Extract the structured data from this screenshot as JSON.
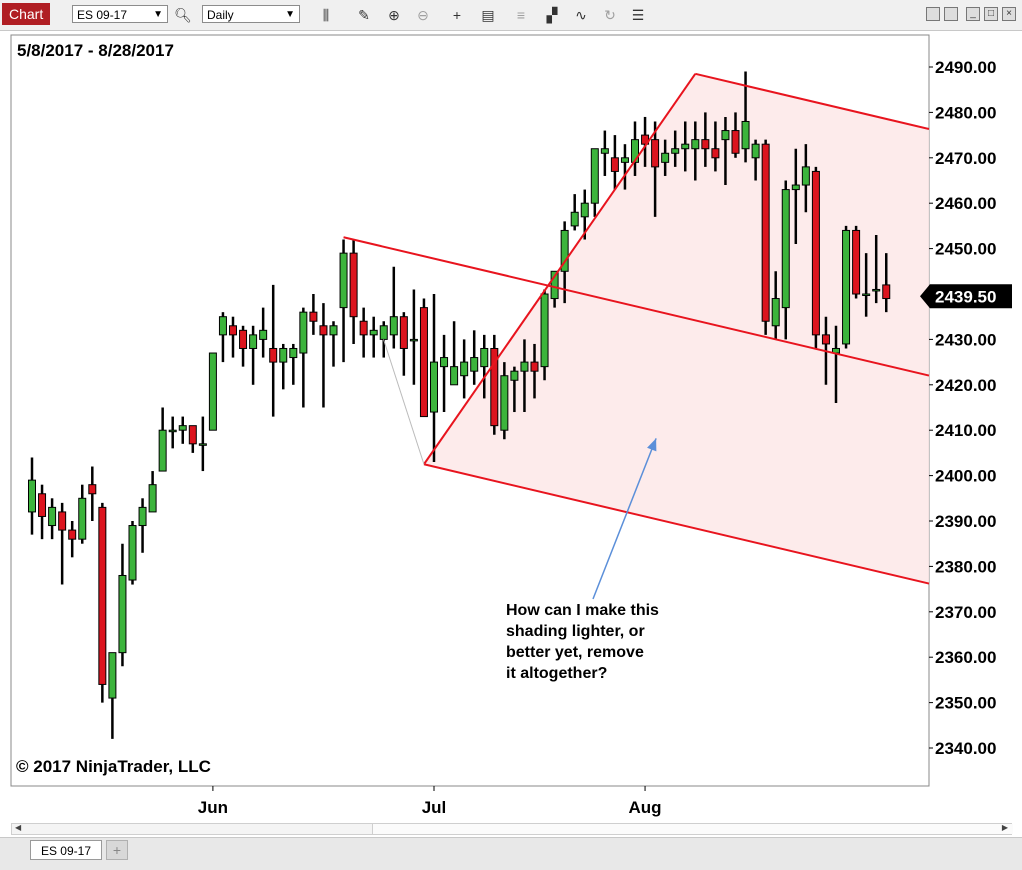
{
  "toolbar": {
    "chart_label": "Chart",
    "instrument": "ES 09-17",
    "interval": "Daily",
    "icons": [
      "search-icon",
      "bars-type-icon",
      "pencil-icon",
      "zoom-in-icon",
      "zoom-out-icon",
      "crosshair-icon",
      "data-box-icon",
      "indicators-icon",
      "strategies-icon",
      "drawing-tools-icon",
      "reload-icon",
      "properties-icon"
    ]
  },
  "tabs": {
    "instrument_tab": "ES 09-17",
    "add_tab": "+"
  },
  "chart_data": {
    "type": "candlestick",
    "date_range": "5/8/2017 - 8/28/2017",
    "copyright": "© 2017 NinjaTrader, LLC",
    "ylim": [
      2333,
      2496
    ],
    "yticks": [
      2490,
      2480,
      2470,
      2460,
      2450,
      2440,
      2430,
      2420,
      2410,
      2400,
      2390,
      2380,
      2370,
      2360,
      2350,
      2340
    ],
    "ytick_labels": [
      "2490.00",
      "2480.00",
      "2470.00",
      "2460.00",
      "2450.00",
      "2440.00",
      "2430.00",
      "2420.00",
      "2410.00",
      "2400.00",
      "2390.00",
      "2380.00",
      "2370.00",
      "2360.00",
      "2350.00",
      "2340.00"
    ],
    "xtick_labels": [
      {
        "label": "Jun",
        "index": 18
      },
      {
        "label": "Jul",
        "index": 40
      },
      {
        "label": "Aug",
        "index": 61
      }
    ],
    "last_price": 2439.5,
    "last_price_label": "2439.50",
    "up_color": "#3cb43c",
    "down_color": "#dc141e",
    "channel_color": "#e8141e",
    "channel_fill": "#fde8e8",
    "candles": [
      {
        "o": 2392,
        "h": 2404,
        "l": 2387,
        "c": 2399
      },
      {
        "o": 2396,
        "h": 2398,
        "l": 2386,
        "c": 2391
      },
      {
        "o": 2389,
        "h": 2395,
        "l": 2386,
        "c": 2393
      },
      {
        "o": 2392,
        "h": 2394,
        "l": 2376,
        "c": 2388
      },
      {
        "o": 2388,
        "h": 2390,
        "l": 2382,
        "c": 2386
      },
      {
        "o": 2386,
        "h": 2398,
        "l": 2385,
        "c": 2395
      },
      {
        "o": 2398,
        "h": 2402,
        "l": 2390,
        "c": 2396
      },
      {
        "o": 2393,
        "h": 2394,
        "l": 2350,
        "c": 2354
      },
      {
        "o": 2351,
        "h": 2361,
        "l": 2342,
        "c": 2361
      },
      {
        "o": 2361,
        "h": 2385,
        "l": 2358,
        "c": 2378
      },
      {
        "o": 2377,
        "h": 2390,
        "l": 2376,
        "c": 2389
      },
      {
        "o": 2389,
        "h": 2395,
        "l": 2383,
        "c": 2393
      },
      {
        "o": 2392,
        "h": 2401,
        "l": 2392,
        "c": 2398
      },
      {
        "o": 2401,
        "h": 2415,
        "l": 2401,
        "c": 2410
      },
      {
        "o": 2410,
        "h": 2413,
        "l": 2406,
        "c": 2410
      },
      {
        "o": 2410,
        "h": 2413,
        "l": 2407,
        "c": 2411
      },
      {
        "o": 2411,
        "h": 2411,
        "l": 2405,
        "c": 2407
      },
      {
        "o": 2407,
        "h": 2413,
        "l": 2401,
        "c": 2407
      },
      {
        "o": 2410,
        "h": 2427,
        "l": 2410,
        "c": 2427
      },
      {
        "o": 2431,
        "h": 2436,
        "l": 2425,
        "c": 2435
      },
      {
        "o": 2433,
        "h": 2435,
        "l": 2426,
        "c": 2431
      },
      {
        "o": 2432,
        "h": 2433,
        "l": 2424,
        "c": 2428
      },
      {
        "o": 2428,
        "h": 2433,
        "l": 2420,
        "c": 2431
      },
      {
        "o": 2430,
        "h": 2437,
        "l": 2426,
        "c": 2432
      },
      {
        "o": 2428,
        "h": 2442,
        "l": 2413,
        "c": 2425
      },
      {
        "o": 2425,
        "h": 2429,
        "l": 2419,
        "c": 2428
      },
      {
        "o": 2426,
        "h": 2429,
        "l": 2420,
        "c": 2428
      },
      {
        "o": 2427,
        "h": 2437,
        "l": 2415,
        "c": 2436
      },
      {
        "o": 2436,
        "h": 2440,
        "l": 2431,
        "c": 2434
      },
      {
        "o": 2433,
        "h": 2438,
        "l": 2415,
        "c": 2431
      },
      {
        "o": 2431,
        "h": 2434,
        "l": 2424,
        "c": 2433
      },
      {
        "o": 2437,
        "h": 2452,
        "l": 2425,
        "c": 2449
      },
      {
        "o": 2449,
        "h": 2452,
        "l": 2429,
        "c": 2435
      },
      {
        "o": 2434,
        "h": 2437,
        "l": 2426,
        "c": 2431
      },
      {
        "o": 2431,
        "h": 2435,
        "l": 2426,
        "c": 2432
      },
      {
        "o": 2430,
        "h": 2434,
        "l": 2426,
        "c": 2433
      },
      {
        "o": 2431,
        "h": 2446,
        "l": 2428,
        "c": 2435
      },
      {
        "o": 2435,
        "h": 2436,
        "l": 2422,
        "c": 2428
      },
      {
        "o": 2430,
        "h": 2441,
        "l": 2420,
        "c": 2430
      },
      {
        "o": 2437,
        "h": 2439,
        "l": 2413,
        "c": 2413
      },
      {
        "o": 2414,
        "h": 2440,
        "l": 2403,
        "c": 2425
      },
      {
        "o": 2424,
        "h": 2431,
        "l": 2414,
        "c": 2426
      },
      {
        "o": 2420,
        "h": 2434,
        "l": 2420,
        "c": 2424
      },
      {
        "o": 2422,
        "h": 2430,
        "l": 2417,
        "c": 2425
      },
      {
        "o": 2423,
        "h": 2432,
        "l": 2420,
        "c": 2426
      },
      {
        "o": 2424,
        "h": 2431,
        "l": 2417,
        "c": 2428
      },
      {
        "o": 2428,
        "h": 2431,
        "l": 2409,
        "c": 2411
      },
      {
        "o": 2410,
        "h": 2425,
        "l": 2408,
        "c": 2422
      },
      {
        "o": 2421,
        "h": 2424,
        "l": 2414,
        "c": 2423
      },
      {
        "o": 2423,
        "h": 2430,
        "l": 2414,
        "c": 2425
      },
      {
        "o": 2425,
        "h": 2429,
        "l": 2417,
        "c": 2423
      },
      {
        "o": 2424,
        "h": 2441,
        "l": 2421,
        "c": 2440
      },
      {
        "o": 2439,
        "h": 2445,
        "l": 2437,
        "c": 2445
      },
      {
        "o": 2445,
        "h": 2456,
        "l": 2438,
        "c": 2454
      },
      {
        "o": 2455,
        "h": 2462,
        "l": 2454,
        "c": 2458
      },
      {
        "o": 2457,
        "h": 2463,
        "l": 2452,
        "c": 2460
      },
      {
        "o": 2460,
        "h": 2472,
        "l": 2457,
        "c": 2472
      },
      {
        "o": 2471,
        "h": 2476,
        "l": 2466,
        "c": 2472
      },
      {
        "o": 2470,
        "h": 2475,
        "l": 2463,
        "c": 2467
      },
      {
        "o": 2469,
        "h": 2473,
        "l": 2463,
        "c": 2470
      },
      {
        "o": 2469,
        "h": 2478,
        "l": 2466,
        "c": 2474
      },
      {
        "o": 2475,
        "h": 2479,
        "l": 2468,
        "c": 2473
      },
      {
        "o": 2474,
        "h": 2478,
        "l": 2457,
        "c": 2468
      },
      {
        "o": 2469,
        "h": 2474,
        "l": 2466,
        "c": 2471
      },
      {
        "o": 2471,
        "h": 2476,
        "l": 2468,
        "c": 2472
      },
      {
        "o": 2472,
        "h": 2478,
        "l": 2467,
        "c": 2473
      },
      {
        "o": 2472,
        "h": 2478,
        "l": 2465,
        "c": 2474
      },
      {
        "o": 2474,
        "h": 2480,
        "l": 2468,
        "c": 2472
      },
      {
        "o": 2472,
        "h": 2478,
        "l": 2467,
        "c": 2470
      },
      {
        "o": 2474,
        "h": 2479,
        "l": 2464,
        "c": 2476
      },
      {
        "o": 2476,
        "h": 2480,
        "l": 2470,
        "c": 2471
      },
      {
        "o": 2472,
        "h": 2489,
        "l": 2469,
        "c": 2478
      },
      {
        "o": 2470,
        "h": 2474,
        "l": 2465,
        "c": 2473
      },
      {
        "o": 2473,
        "h": 2474,
        "l": 2431,
        "c": 2434
      },
      {
        "o": 2433,
        "h": 2445,
        "l": 2430,
        "c": 2439
      },
      {
        "o": 2437,
        "h": 2465,
        "l": 2430,
        "c": 2463
      },
      {
        "o": 2463,
        "h": 2472,
        "l": 2451,
        "c": 2464
      },
      {
        "o": 2464,
        "h": 2473,
        "l": 2458,
        "c": 2468
      },
      {
        "o": 2467,
        "h": 2468,
        "l": 2428,
        "c": 2431
      },
      {
        "o": 2431,
        "h": 2435,
        "l": 2420,
        "c": 2429
      },
      {
        "o": 2427,
        "h": 2433,
        "l": 2416,
        "c": 2428
      },
      {
        "o": 2429,
        "h": 2455,
        "l": 2428,
        "c": 2454
      },
      {
        "o": 2454,
        "h": 2455,
        "l": 2439,
        "c": 2440
      },
      {
        "o": 2440,
        "h": 2449,
        "l": 2435,
        "c": 2440
      },
      {
        "o": 2441,
        "h": 2453,
        "l": 2438,
        "c": 2441
      },
      {
        "o": 2442,
        "h": 2449,
        "l": 2436,
        "c": 2439
      }
    ],
    "channel": {
      "main_line": {
        "from": {
          "i": 39,
          "v": 2402.5
        },
        "to": {
          "i": 66,
          "v": 2488.5
        }
      },
      "upper_line": {
        "from": {
          "i": 31,
          "v": 2452.5
        },
        "to": "right_edge",
        "slope_per_bar": -0.523
      },
      "mid_line": {
        "from": {
          "i": 39,
          "v": 2402.5
        },
        "through": {
          "i": 66,
          "v": 2488.5
        },
        "offset": "parallel_mid"
      },
      "lower_line": {
        "from": {
          "i": 39,
          "v": 2402.5
        },
        "to": "right_edge",
        "slope_per_bar": -0.523
      }
    },
    "annotation": {
      "text": [
        "How can I make this",
        "shading lighter, or",
        "better yet, remove",
        "it altogether?"
      ],
      "arrow_target": {
        "i": 62,
        "v": 2406
      }
    }
  }
}
